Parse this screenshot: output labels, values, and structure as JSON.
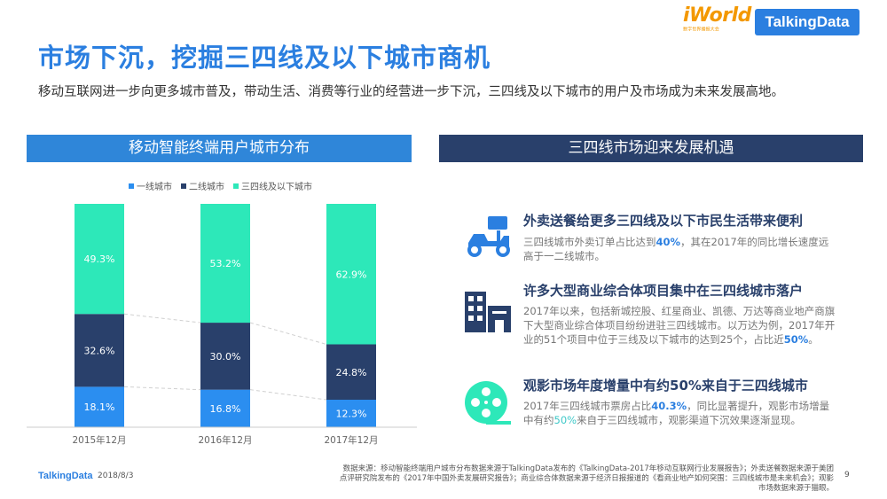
{
  "header": {
    "title": "市场下沉，挖掘三四线及以下城市商机",
    "subtitle": "移动互联网进一步向更多城市普及，带动生活、消费等行业的经营进一步下沉，三四线及以下城市的用户及市场成为未来发展高地。"
  },
  "logos": {
    "iworld": "iWorld",
    "iworld_sub": "数字世界播报大会",
    "talkingdata": "TalkingData"
  },
  "left_section": {
    "header": "移动智能终端用户城市分布"
  },
  "right_section": {
    "header": "三四线市场迎来发展机遇"
  },
  "legend": {
    "tier1": "一线城市",
    "tier2": "二线城市",
    "tier34": "三四线及以下城市"
  },
  "colors": {
    "tier1": "#2b8ef0",
    "tier2": "#29406b",
    "tier34": "#2de8b9",
    "accent": "#2b7fe0"
  },
  "chart_data": {
    "type": "bar",
    "stacked": true,
    "categories": [
      "2015年12月",
      "2016年12月",
      "2017年12月"
    ],
    "series": [
      {
        "name": "一线城市",
        "values": [
          18.1,
          16.8,
          12.3
        ]
      },
      {
        "name": "二线城市",
        "values": [
          32.6,
          30.0,
          24.8
        ]
      },
      {
        "name": "三四线及以下城市",
        "values": [
          49.3,
          53.2,
          62.9
        ]
      }
    ],
    "labels": [
      [
        "18.1%",
        "16.8%",
        "12.3%"
      ],
      [
        "32.6%",
        "30.0%",
        "24.8%"
      ],
      [
        "49.3%",
        "53.2%",
        "62.9%"
      ]
    ],
    "ylim": [
      0,
      100
    ],
    "legend_position": "top",
    "grid": false
  },
  "items": [
    {
      "icon": "scooter-icon",
      "title": "外卖送餐给更多三四线及以下市民生活带来便利",
      "text_pre": "三四线城市外卖订单占比达到",
      "text_hl": "40%",
      "text_post": "，其在2017年的同比增长速度远高于一二线城市。"
    },
    {
      "icon": "buildings-icon",
      "title": "许多大型商业综合体项目集中在三四线城市落户",
      "text_pre": "2017年以来，包括新城控股、红星商业、凯德、万达等商业地产商旗下大型商业综合体项目纷纷进驻三四线城市。以万达为例，2017年开业的51个项目中位于三线及以下城市的达到25个，占比近",
      "text_hl": "50%",
      "text_post": "。"
    },
    {
      "icon": "film-reel-icon",
      "title": "观影市场年度增量中有约50%来自于三四线城市",
      "text_pre": "2017年三四线城市票房占比",
      "text_hl": "40.3%",
      "text_mid": "，同比显著提升，观影市场增量中有约",
      "text_hl2": "50%",
      "text_post": "来自于三四线城市，观影渠道下沉效果逐渐显现。"
    }
  ],
  "footer": {
    "logo": "TalkingData",
    "date": "2018/8/3",
    "source": "数据来源：移动智能终端用户城市分布数据来源于TalkingData发布的《TalkingData-2017年移动互联网行业发展报告》；外卖送餐数据来源于美团点评研究院发布的《2017年中国外卖发展研究报告》；商业综合体数据来源于经济日报报道的《看商业地产如何突围：三四线城市是未来机会》；观影市场数据来源于猫眼。",
    "page": "9"
  }
}
